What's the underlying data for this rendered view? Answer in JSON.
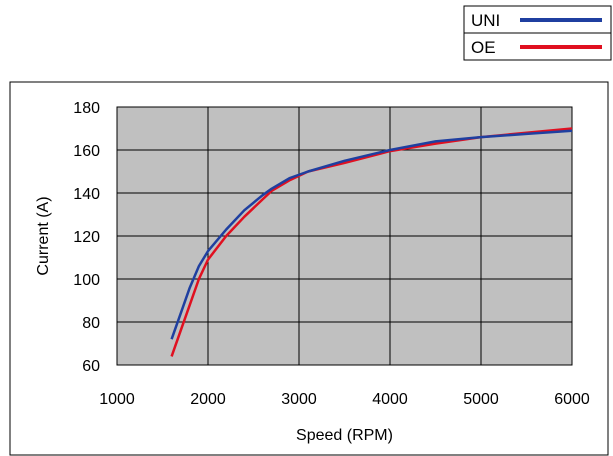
{
  "chart_data": {
    "type": "line",
    "title": "",
    "xlabel": "Speed (RPM)",
    "ylabel": "Current (A)",
    "xlim": [
      1000,
      6000
    ],
    "ylim": [
      60,
      180
    ],
    "xticks": [
      1000,
      2000,
      3000,
      4000,
      5000,
      6000
    ],
    "yticks": [
      60,
      80,
      100,
      120,
      140,
      160,
      180
    ],
    "grid": true,
    "plot_background": "#c0c0c0",
    "legend_position": "top-right, outside plot",
    "series": [
      {
        "name": "UNI",
        "color": "#1f3fa0",
        "x": [
          1600,
          1700,
          1800,
          1900,
          2000,
          2200,
          2400,
          2600,
          2700,
          2900,
          3100,
          3500,
          4000,
          4500,
          5000,
          5500,
          6000
        ],
        "y": [
          72,
          84,
          96,
          106,
          113,
          123,
          132,
          139,
          142,
          147,
          150,
          155,
          160,
          164,
          166,
          167.5,
          169
        ]
      },
      {
        "name": "OE",
        "color": "#e01020",
        "x": [
          1600,
          1700,
          1800,
          1900,
          2000,
          2200,
          2400,
          2600,
          2700,
          2900,
          3100,
          3500,
          4000,
          4500,
          5000,
          5500,
          6000
        ],
        "y": [
          64,
          76,
          88,
          100,
          109,
          120,
          129,
          137,
          141,
          146,
          150,
          154,
          159.5,
          163,
          166,
          168,
          170
        ]
      }
    ]
  }
}
